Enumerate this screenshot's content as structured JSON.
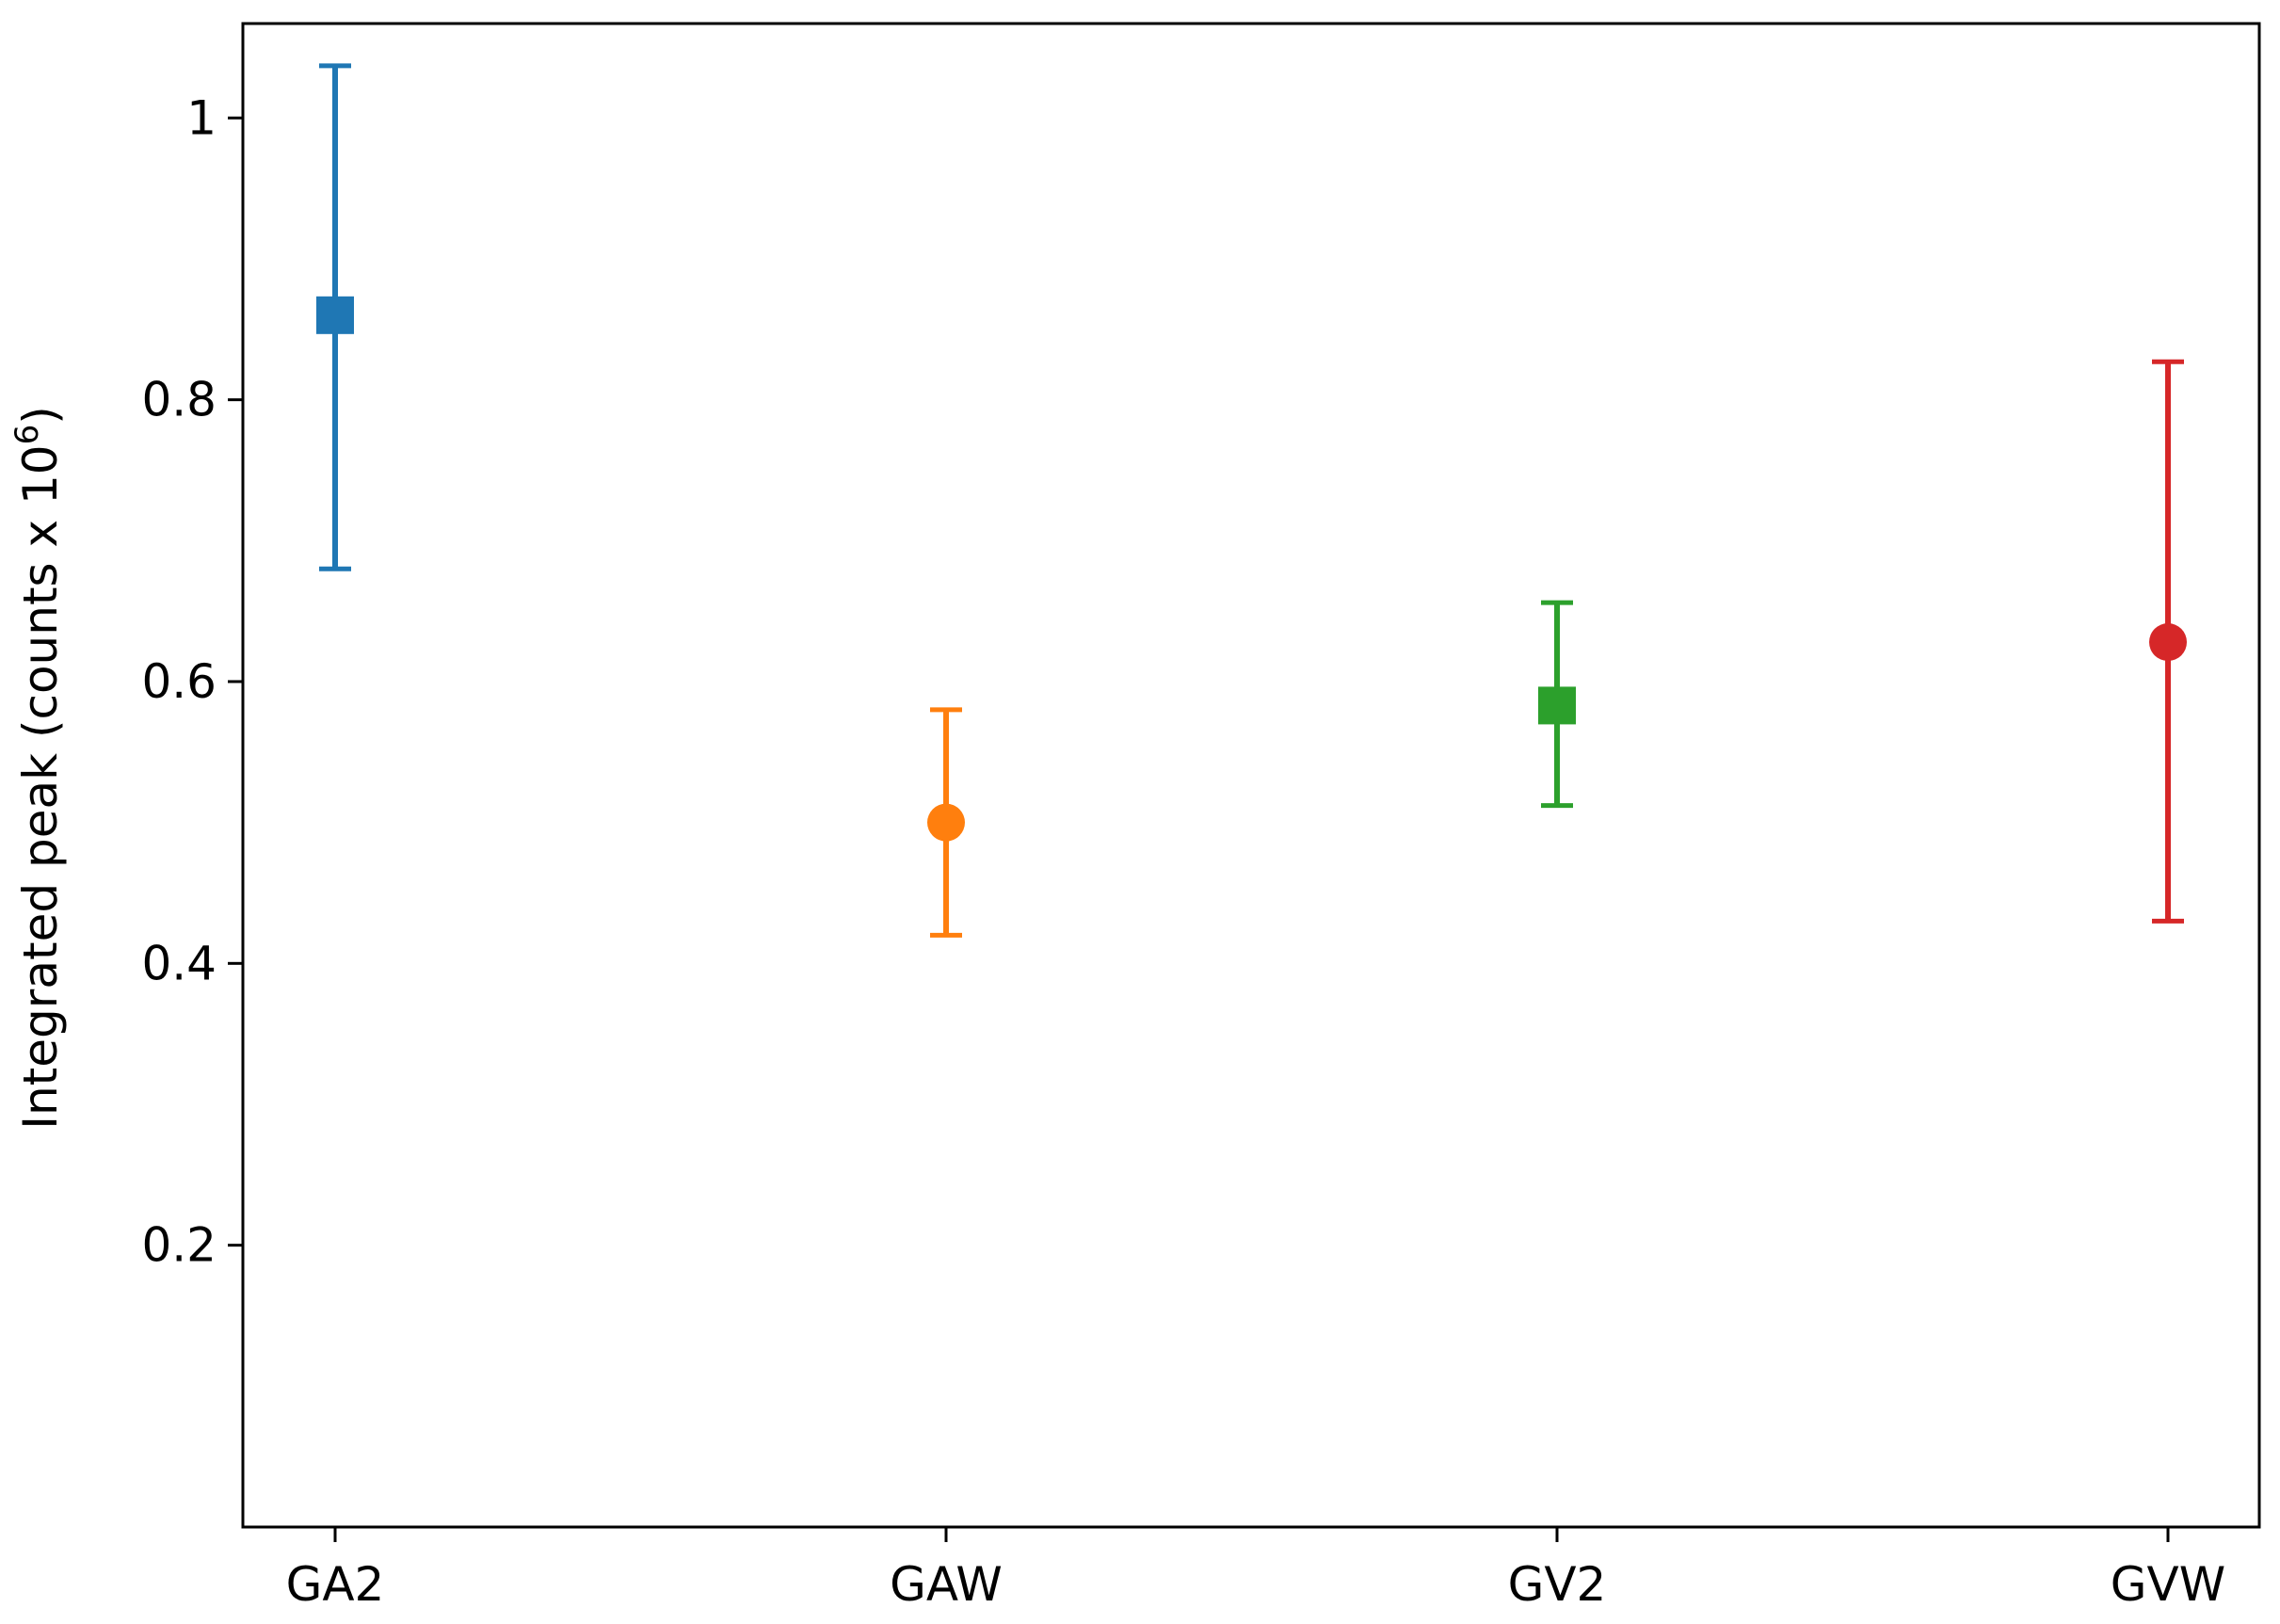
{
  "chart_data": {
    "type": "scatter",
    "subtype": "errorbar",
    "title": "",
    "xlabel": "",
    "ylabel": "Integrated peak (counts x 10",
    "ylabel_superscript": "6",
    "ylabel_suffix": ")",
    "categories": [
      "GA2",
      "GAW",
      "GV2",
      "GVW"
    ],
    "x_ticks": [
      "GA2",
      "GAW",
      "GV2",
      "GVW"
    ],
    "y_ticks": [
      "0.2",
      "0.4",
      "0.6",
      "0.8",
      "1"
    ],
    "ylim": [
      0.0,
      1.067
    ],
    "grid": false,
    "legend": "none",
    "series": [
      {
        "category": "GA2",
        "value": 0.86,
        "err_low": 0.68,
        "err_high": 1.037,
        "marker": "square",
        "color": "#1f77b4"
      },
      {
        "category": "GAW",
        "value": 0.5,
        "err_low": 0.42,
        "err_high": 0.58,
        "marker": "circle",
        "color": "#ff7f0e"
      },
      {
        "category": "GV2",
        "value": 0.583,
        "err_low": 0.512,
        "err_high": 0.656,
        "marker": "square",
        "color": "#2ca02c"
      },
      {
        "category": "GVW",
        "value": 0.628,
        "err_low": 0.43,
        "err_high": 0.827,
        "marker": "circle",
        "color": "#d62728"
      }
    ]
  }
}
